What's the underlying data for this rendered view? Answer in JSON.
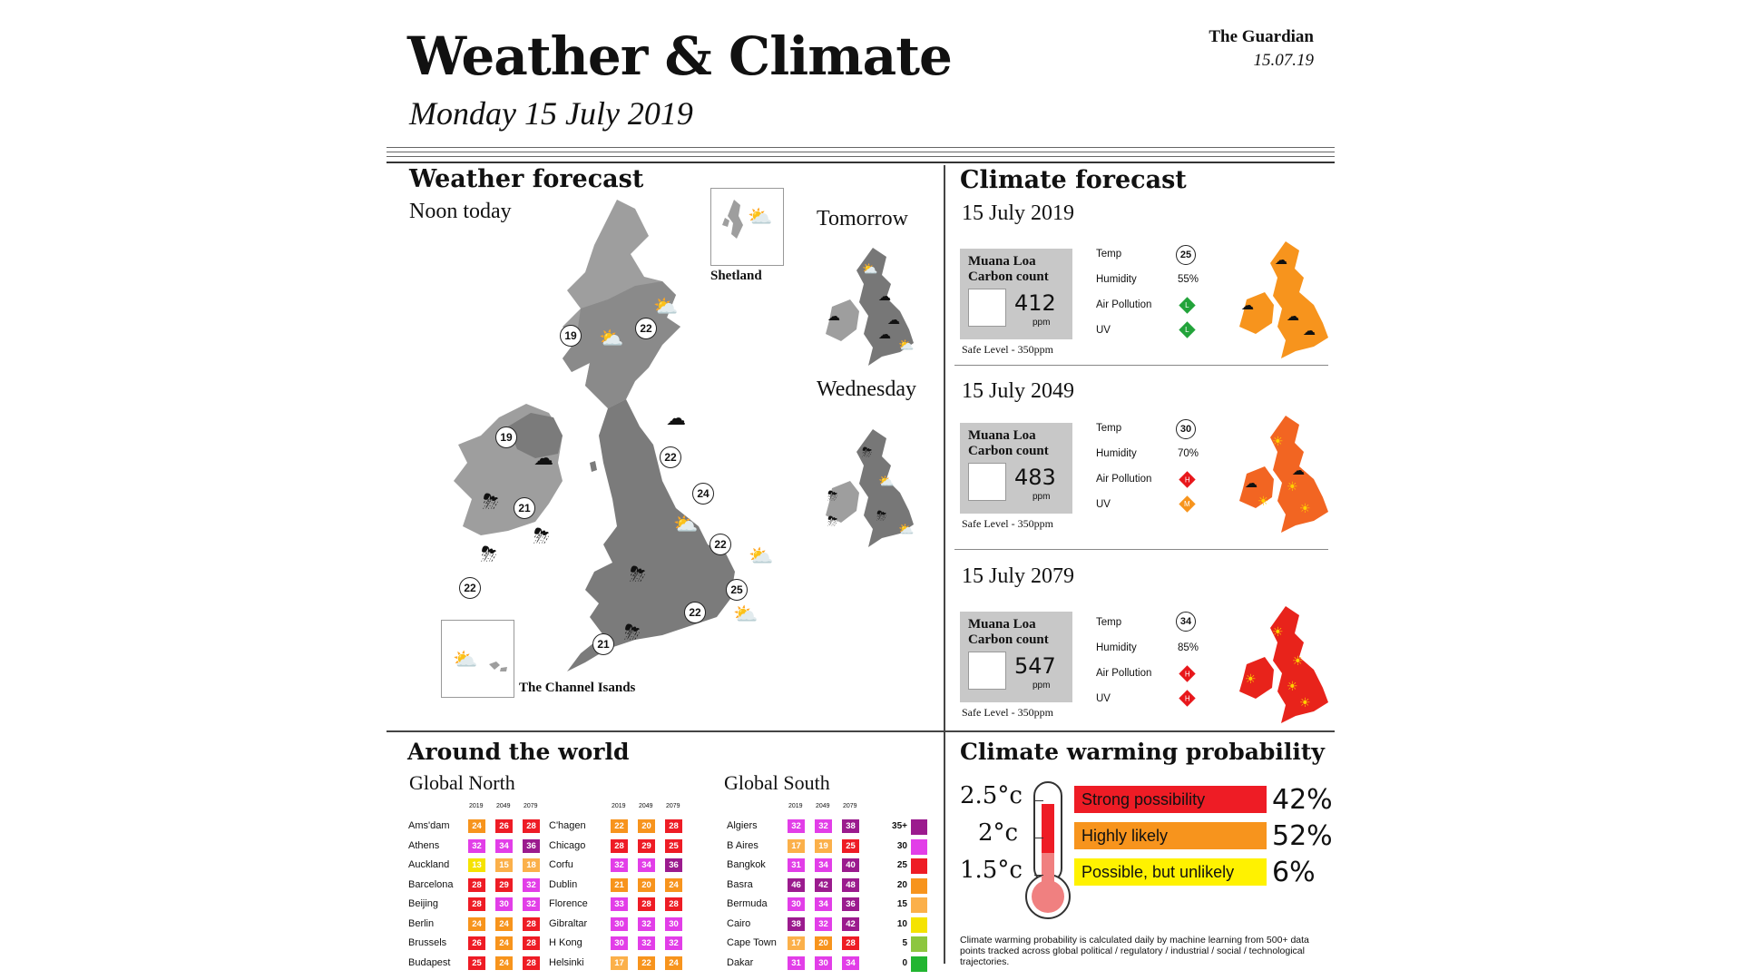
{
  "header": {
    "title": "Weather & Climate",
    "subtitle": "Monday 15 July 2019",
    "brand": "The Guardian",
    "date": "15.07.19"
  },
  "weather": {
    "title": "Weather  forecast",
    "noon": "Noon today",
    "tomorrow": "Tomorrow",
    "wednesday": "Wednesday",
    "shetland": "Shetland",
    "channel": "The Channel Isands",
    "temps": [
      "19",
      "22",
      "19",
      "21",
      "22",
      "24",
      "22",
      "22",
      "25",
      "22",
      "21"
    ]
  },
  "climate": {
    "title": "Climate forecast",
    "carbon_label_1": "Muana Loa",
    "carbon_label_2": "Carbon count",
    "ppm_unit": "ppm",
    "safe": "Safe Level - 350ppm",
    "stat_labels": [
      "Temp",
      "Humidity",
      "Air Pollution",
      "UV"
    ],
    "rows": [
      {
        "date": "15 July 2019",
        "ppm": "412",
        "temp": "25",
        "humidity": "55%",
        "pollution": "L",
        "uv": "L",
        "pollution_color": "#22a33a",
        "uv_color": "#22a33a",
        "map_color": "#f7941d"
      },
      {
        "date": "15 July 2049",
        "ppm": "483",
        "temp": "30",
        "humidity": "70%",
        "pollution": "H",
        "uv": "M",
        "pollution_color": "#e8171b",
        "uv_color": "#f7941d",
        "map_color": "#f26522"
      },
      {
        "date": "15 July 2079",
        "ppm": "547",
        "temp": "34",
        "humidity": "85%",
        "pollution": "H",
        "uv": "H",
        "pollution_color": "#e8171b",
        "uv_color": "#e8171b",
        "map_color": "#e8231b"
      }
    ]
  },
  "world": {
    "title": "Around the world",
    "north_title": "Global North",
    "south_title": "Global South",
    "years": [
      "2019",
      "2049",
      "2079"
    ],
    "north_col1": [
      {
        "city": "Ams'dam",
        "v": [
          "24",
          "26",
          "28"
        ]
      },
      {
        "city": "Athens",
        "v": [
          "32",
          "34",
          "36"
        ]
      },
      {
        "city": "Auckland",
        "v": [
          "13",
          "15",
          "18"
        ]
      },
      {
        "city": "Barcelona",
        "v": [
          "28",
          "29",
          "32"
        ]
      },
      {
        "city": "Beijing",
        "v": [
          "28",
          "30",
          "32"
        ]
      },
      {
        "city": "Berlin",
        "v": [
          "24",
          "24",
          "28"
        ]
      },
      {
        "city": "Brussels",
        "v": [
          "26",
          "24",
          "28"
        ]
      },
      {
        "city": "Budapest",
        "v": [
          "25",
          "24",
          "28"
        ]
      }
    ],
    "north_col2": [
      {
        "city": "C'hagen",
        "v": [
          "22",
          "20",
          "28"
        ]
      },
      {
        "city": "Chicago",
        "v": [
          "28",
          "29",
          "25"
        ]
      },
      {
        "city": "Corfu",
        "v": [
          "32",
          "34",
          "36"
        ]
      },
      {
        "city": "Dublin",
        "v": [
          "21",
          "20",
          "24"
        ]
      },
      {
        "city": "Florence",
        "v": [
          "33",
          "28",
          "28"
        ]
      },
      {
        "city": "Gibraltar",
        "v": [
          "30",
          "32",
          "30"
        ]
      },
      {
        "city": "H Kong",
        "v": [
          "30",
          "32",
          "32"
        ]
      },
      {
        "city": "Helsinki",
        "v": [
          "17",
          "22",
          "24"
        ]
      }
    ],
    "south": [
      {
        "city": "Algiers",
        "v": [
          "32",
          "32",
          "38"
        ]
      },
      {
        "city": "B Aires",
        "v": [
          "17",
          "19",
          "25"
        ]
      },
      {
        "city": "Bangkok",
        "v": [
          "31",
          "34",
          "40"
        ]
      },
      {
        "city": "Basra",
        "v": [
          "46",
          "42",
          "48"
        ]
      },
      {
        "city": "Bermuda",
        "v": [
          "30",
          "34",
          "36"
        ]
      },
      {
        "city": "Cairo",
        "v": [
          "38",
          "32",
          "42"
        ]
      },
      {
        "city": "Cape Town",
        "v": [
          "17",
          "20",
          "28"
        ]
      },
      {
        "city": "Dakar",
        "v": [
          "31",
          "30",
          "34"
        ]
      }
    ],
    "legend": [
      "35+",
      "30",
      "25",
      "20",
      "15",
      "10",
      "5",
      "0"
    ],
    "legend_colors": [
      "#9b1b8e",
      "#e23ee8",
      "#ee1c25",
      "#f7941d",
      "#fbb04a",
      "#f5e300",
      "#8dc63f",
      "#22b531"
    ]
  },
  "warming": {
    "title": "Climate warming probability",
    "items": [
      {
        "temp": "2.5°c",
        "label": "Strong possibility",
        "pct": "42%",
        "color": "#ee1c25"
      },
      {
        "temp": "2°c",
        "label": "Highly likely",
        "pct": "52%",
        "color": "#f7941d"
      },
      {
        "temp": "1.5°c",
        "label": "Possible, but unlikely",
        "pct": "6%",
        "color": "#fff200"
      }
    ],
    "note": "Climate warming probability is calculated daily by machine learning from 500+ data points tracked across global political / regulatory / industrial / social / technological trajectories."
  }
}
